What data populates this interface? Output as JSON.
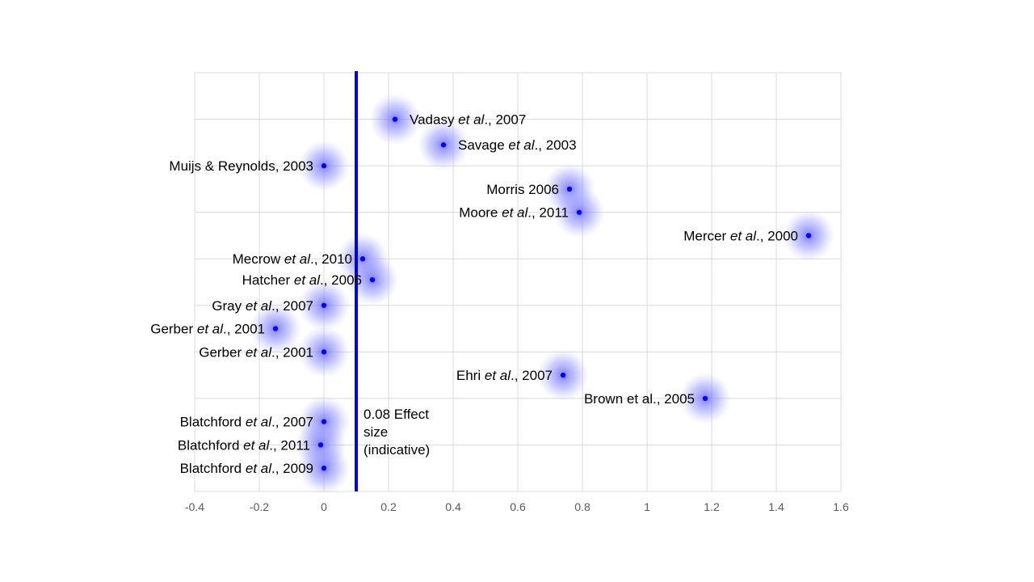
{
  "chart_data": {
    "type": "scatter",
    "title": "",
    "xlabel": "",
    "ylabel": "",
    "xlim": [
      -0.4,
      1.6
    ],
    "ylim": [
      0,
      18
    ],
    "x_ticks": [
      -0.4,
      -0.2,
      0,
      0.2,
      0.4,
      0.6,
      0.8,
      1,
      1.2,
      1.4,
      1.6
    ],
    "x_tick_labels": [
      "-0.4",
      "-0.2",
      "0",
      "0.2",
      "0.4",
      "0.6",
      "0.8",
      "1",
      "1.2",
      "1.4",
      "1.6"
    ],
    "grid": true,
    "point_color": "#0000ff",
    "glow_color": "#7f7fff",
    "reference_line": {
      "x": 0.1,
      "color": "#0000dd",
      "label": "0.08 Effect size (indicative)"
    },
    "points": [
      {
        "label": [
          "Vadasy ",
          "et al",
          "., 2007"
        ],
        "x": 0.22,
        "y": 16.0,
        "side": "right"
      },
      {
        "label": [
          "Savage ",
          "et al",
          "., 2003"
        ],
        "x": 0.37,
        "y": 14.9,
        "side": "right"
      },
      {
        "label": [
          "Muijs & Reynolds, 2003"
        ],
        "x": 0.0,
        "y": 14.0,
        "side": "left"
      },
      {
        "label": [
          "Morris 2006"
        ],
        "x": 0.76,
        "y": 13.0,
        "side": "left"
      },
      {
        "label": [
          "Moore ",
          "et al",
          "., 2011"
        ],
        "x": 0.79,
        "y": 12.0,
        "side": "left"
      },
      {
        "label": [
          "Mercer ",
          "et al",
          "., 2000"
        ],
        "x": 1.5,
        "y": 11.0,
        "side": "left"
      },
      {
        "label": [
          "Mecrow ",
          "et al",
          "., 2010"
        ],
        "x": 0.12,
        "y": 10.0,
        "side": "left"
      },
      {
        "label": [
          "Hatcher ",
          "et al",
          "., 2006"
        ],
        "x": 0.15,
        "y": 9.1,
        "side": "left"
      },
      {
        "label": [
          "Gray ",
          "et al",
          "., 2007"
        ],
        "x": 0.0,
        "y": 8.0,
        "side": "left"
      },
      {
        "label": [
          "Gerber ",
          "et al",
          "., 2001"
        ],
        "x": -0.15,
        "y": 7.0,
        "side": "left"
      },
      {
        "label": [
          "Gerber ",
          "et al",
          "., 2001"
        ],
        "x": 0.0,
        "y": 6.0,
        "side": "left"
      },
      {
        "label": [
          "Ehri ",
          "et al",
          "., 2007"
        ],
        "x": 0.74,
        "y": 5.0,
        "side": "left"
      },
      {
        "label": [
          "Brown et al., 2005"
        ],
        "x": 1.18,
        "y": 4.0,
        "side": "left"
      },
      {
        "label": [
          "Blatchford ",
          "et al",
          "., 2007"
        ],
        "x": 0.0,
        "y": 3.0,
        "side": "left"
      },
      {
        "label": [
          "Blatchford ",
          "et al",
          "., 2011"
        ],
        "x": -0.01,
        "y": 2.0,
        "side": "left"
      },
      {
        "label": [
          "Blatchford ",
          "et al",
          "., 2009"
        ],
        "x": 0.0,
        "y": 1.0,
        "side": "left"
      }
    ]
  }
}
